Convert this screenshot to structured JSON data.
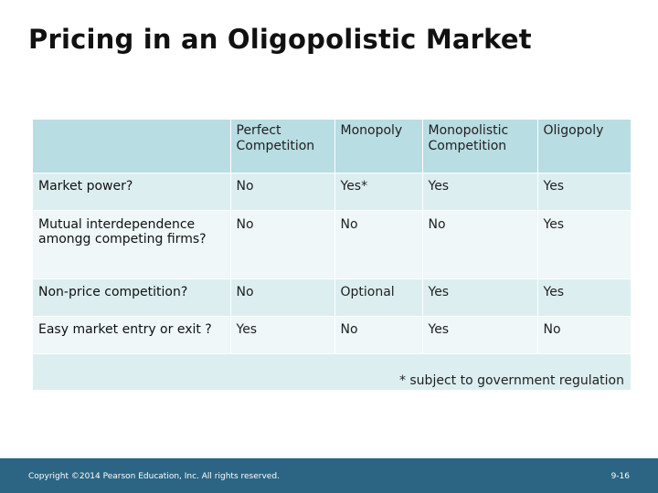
{
  "slide": {
    "title": "Pricing in an Oligopolistic Market"
  },
  "table": {
    "corner": "",
    "columns": [
      "Perfect Competition",
      "Monopoly",
      "Monopolistic Competition",
      "Oligopoly"
    ],
    "rows": [
      {
        "label": "Market power?",
        "cells": [
          "No",
          "Yes*",
          "Yes",
          "Yes"
        ]
      },
      {
        "label": "Mutual interdependence amongg competing firms?",
        "cells": [
          "No",
          "No",
          "No",
          "Yes"
        ]
      },
      {
        "label": "Non-price competition?",
        "cells": [
          "No",
          "Optional",
          "Yes",
          "Yes"
        ]
      },
      {
        "label": "Easy market entry or exit ?",
        "cells": [
          "Yes",
          "No",
          "Yes",
          "No"
        ]
      }
    ],
    "footnote": "* subject to government regulation"
  },
  "footer": {
    "copyright": "Copyright ©2014 Pearson Education, Inc. All rights reserved.",
    "page_number": "9-16"
  },
  "colors": {
    "header_fill": "#b8dde3",
    "row_fill_dark": "#ddeef1",
    "row_fill_light": "#eff7f8",
    "footer_bar": "#2b6583"
  }
}
